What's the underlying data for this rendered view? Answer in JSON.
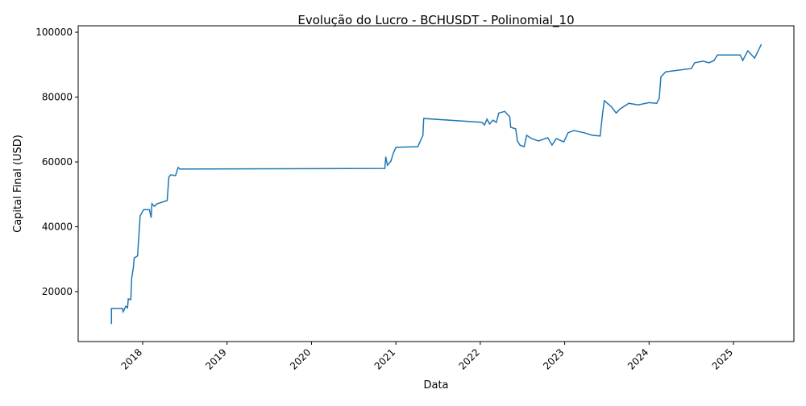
{
  "chart_data": {
    "type": "line",
    "title": "Evolução do Lucro - BCHUSDT - Polinomial_10",
    "x_label": "Data",
    "y_label": "Capital Final (USD)",
    "x": [
      2017.63,
      2017.63,
      2017.76,
      2017.77,
      2017.8,
      2017.82,
      2017.83,
      2017.86,
      2017.87,
      2017.89,
      2017.9,
      2017.94,
      2017.95,
      2017.97,
      2018.01,
      2018.08,
      2018.1,
      2018.11,
      2018.14,
      2018.17,
      2018.29,
      2018.31,
      2018.33,
      2018.39,
      2018.42,
      2018.44,
      2020.87,
      2020.88,
      2020.9,
      2020.94,
      2020.97,
      2021.0,
      2021.26,
      2021.32,
      2021.33,
      2022.02,
      2022.05,
      2022.08,
      2022.11,
      2022.15,
      2022.19,
      2022.22,
      2022.29,
      2022.35,
      2022.36,
      2022.42,
      2022.44,
      2022.47,
      2022.52,
      2022.55,
      2022.61,
      2022.69,
      2022.8,
      2022.85,
      2022.9,
      2022.99,
      2023.04,
      2023.11,
      2023.23,
      2023.33,
      2023.42,
      2023.45,
      2023.47,
      2023.55,
      2023.61,
      2023.66,
      2023.76,
      2023.87,
      2024.0,
      2024.09,
      2024.12,
      2024.14,
      2024.2,
      2024.5,
      2024.54,
      2024.64,
      2024.71,
      2024.77,
      2024.81,
      2025.08,
      2025.11,
      2025.17,
      2025.25,
      2025.33
    ],
    "series": [
      {
        "name": "Capital Final",
        "color": "#1f77b4",
        "values": [
          10000,
          14800,
          14800,
          13800,
          15500,
          15000,
          17800,
          17500,
          24200,
          27500,
          30400,
          31000,
          35400,
          43300,
          45300,
          45300,
          42800,
          47100,
          46300,
          47100,
          48100,
          55300,
          56000,
          55800,
          58300,
          57800,
          58000,
          61600,
          59000,
          60200,
          62700,
          64500,
          64700,
          68200,
          73400,
          72200,
          71400,
          73200,
          71700,
          72900,
          72200,
          75100,
          75600,
          73900,
          70700,
          70200,
          66500,
          65200,
          64700,
          68200,
          67200,
          66500,
          67500,
          65200,
          67200,
          66200,
          69000,
          69700,
          69000,
          68200,
          68000,
          75100,
          78900,
          77100,
          75100,
          76400,
          78100,
          77600,
          78300,
          78100,
          79600,
          86300,
          87800,
          88800,
          90600,
          91100,
          90600,
          91300,
          93000,
          93000,
          91300,
          94300,
          92000,
          96300
        ]
      }
    ],
    "xlim": [
      2017.236,
      2025.716
    ],
    "ylim": [
      4600,
      102000
    ],
    "xticks": [
      2018,
      2019,
      2020,
      2021,
      2022,
      2023,
      2024,
      2025
    ],
    "yticks": [
      20000,
      40000,
      60000,
      80000,
      100000
    ]
  }
}
